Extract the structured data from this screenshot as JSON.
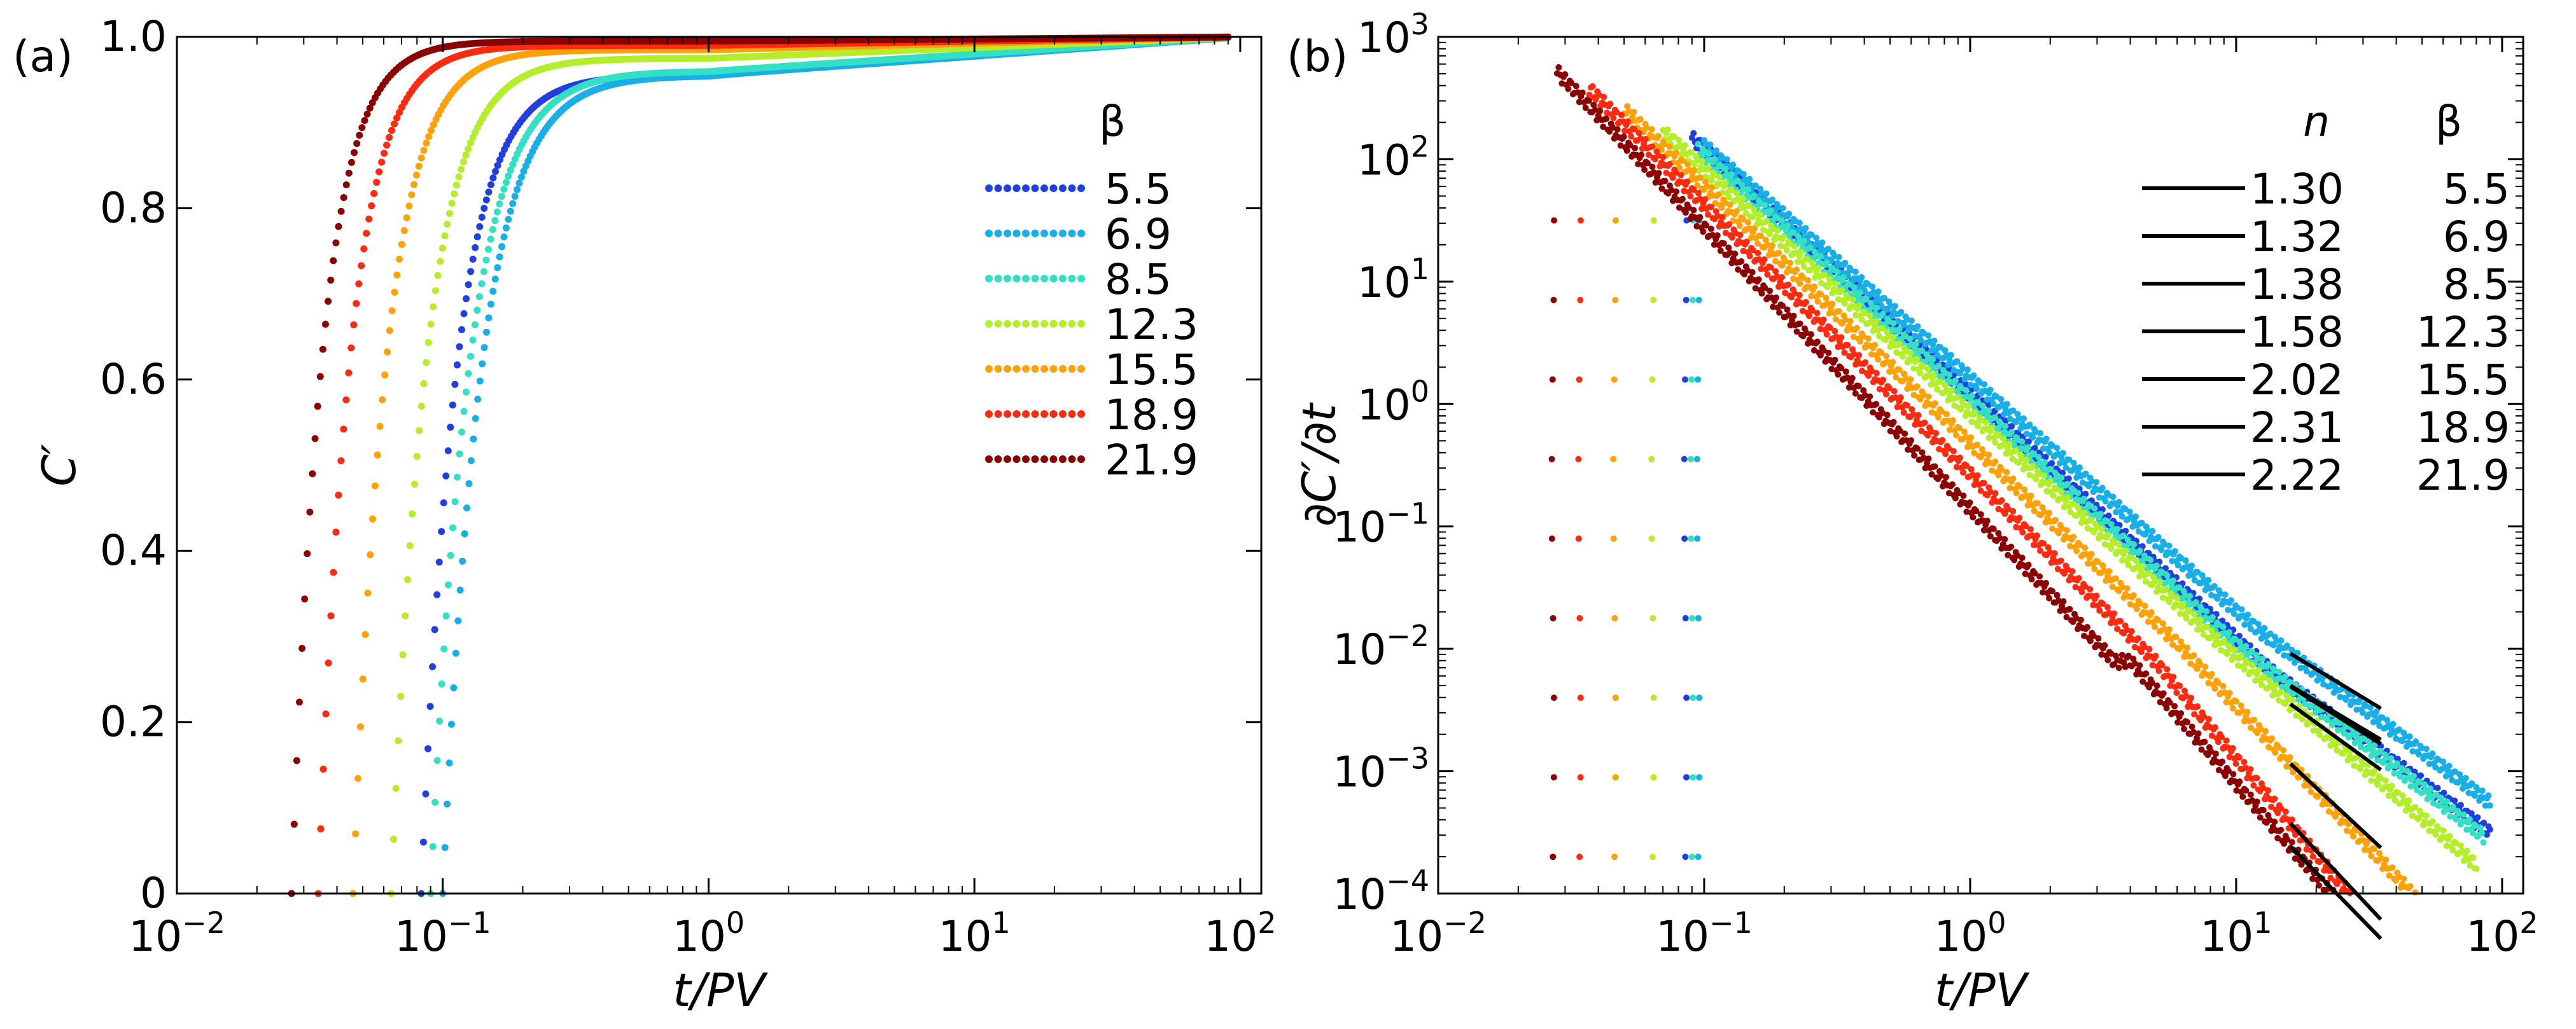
{
  "chart_data": [
    {
      "panel": "(a)",
      "type": "scatter",
      "xscale": "log",
      "xlabel": "t/PV",
      "ylabel": "C′",
      "xlim": [
        0.01,
        120
      ],
      "ylim": [
        0,
        1.0
      ],
      "xticks": [
        {
          "value": 0.01,
          "base": "10",
          "exp": "−2"
        },
        {
          "value": 0.1,
          "base": "10",
          "exp": "−1"
        },
        {
          "value": 1,
          "base": "10",
          "exp": "0"
        },
        {
          "value": 10,
          "base": "10",
          "exp": "1"
        },
        {
          "value": 100,
          "base": "10",
          "exp": "2"
        }
      ],
      "yticks": [
        {
          "value": 0,
          "label": "0"
        },
        {
          "value": 0.2,
          "label": "0.2"
        },
        {
          "value": 0.4,
          "label": "0.4"
        },
        {
          "value": 0.6,
          "label": "0.6"
        },
        {
          "value": 0.8,
          "label": "0.8"
        },
        {
          "value": 1.0,
          "label": "1.0"
        }
      ],
      "legend": {
        "title": "β",
        "position": "right"
      },
      "series": [
        {
          "beta": "5.5",
          "color": "#1f3fe0",
          "t0": 0.083,
          "k": 2.4,
          "plateau": 0.955,
          "tail": 0.045
        },
        {
          "beta": "6.9",
          "color": "#18aee8",
          "t0": 0.1,
          "k": 2.2,
          "plateau": 0.955,
          "tail": 0.045
        },
        {
          "beta": "8.5",
          "color": "#33e0c4",
          "t0": 0.09,
          "k": 2.2,
          "plateau": 0.96,
          "tail": 0.04
        },
        {
          "beta": "12.3",
          "color": "#b4ee2a",
          "t0": 0.064,
          "k": 2.4,
          "plateau": 0.975,
          "tail": 0.025
        },
        {
          "beta": "15.5",
          "color": "#ffa20a",
          "t0": 0.046,
          "k": 2.5,
          "plateau": 0.985,
          "tail": 0.015
        },
        {
          "beta": "18.9",
          "color": "#ff2a10",
          "t0": 0.034,
          "k": 2.6,
          "plateau": 0.99,
          "tail": 0.01
        },
        {
          "beta": "21.9",
          "color": "#8b0000",
          "t0": 0.027,
          "k": 2.7,
          "plateau": 0.995,
          "tail": 0.005
        }
      ]
    },
    {
      "panel": "(b)",
      "type": "scatter",
      "xscale": "log",
      "yscale": "log",
      "xlabel": "t/PV",
      "ylabel": "∂C′/∂t",
      "xlim": [
        0.01,
        120
      ],
      "ylim": [
        0.0001,
        1000
      ],
      "xticks": [
        {
          "value": 0.01,
          "base": "10",
          "exp": "−2"
        },
        {
          "value": 0.1,
          "base": "10",
          "exp": "−1"
        },
        {
          "value": 1,
          "base": "10",
          "exp": "0"
        },
        {
          "value": 10,
          "base": "10",
          "exp": "1"
        },
        {
          "value": 100,
          "base": "10",
          "exp": "2"
        }
      ],
      "yticks": [
        {
          "value": 0.0001,
          "base": "10",
          "exp": "−4"
        },
        {
          "value": 0.001,
          "base": "10",
          "exp": "−3"
        },
        {
          "value": 0.01,
          "base": "10",
          "exp": "−2"
        },
        {
          "value": 0.1,
          "base": "10",
          "exp": "−1"
        },
        {
          "value": 1,
          "base": "10",
          "exp": "0"
        },
        {
          "value": 10,
          "base": "10",
          "exp": "1"
        },
        {
          "value": 100,
          "base": "10",
          "exp": "2"
        },
        {
          "value": 1000,
          "base": "10",
          "exp": "3"
        }
      ],
      "legend": {
        "title_n": "n",
        "title_beta": "β",
        "position": "right"
      },
      "fit_range": [
        16,
        35
      ],
      "series": [
        {
          "beta": "5.5",
          "n": "1.30",
          "color": "#1f3fe0",
          "t0": 0.085,
          "peak": 150,
          "peak_t": 0.09,
          "main_slope": 2.0,
          "plateau": 0.028,
          "tail_start": 14,
          "tail_end": 90
        },
        {
          "beta": "6.9",
          "n": "1.32",
          "color": "#18aee8",
          "t0": 0.095,
          "peak": 130,
          "peak_t": 0.1,
          "main_slope": 1.9,
          "plateau": 0.012,
          "tail_start": 12,
          "tail_end": 90
        },
        {
          "beta": "8.5",
          "n": "1.38",
          "color": "#33e0c4",
          "t0": 0.09,
          "peak": 120,
          "peak_t": 0.095,
          "main_slope": 2.0,
          "plateau": 0.01,
          "tail_start": 10,
          "tail_end": 85
        },
        {
          "beta": "12.3",
          "n": "1.58",
          "color": "#b4ee2a",
          "t0": 0.064,
          "peak": 170,
          "peak_t": 0.07,
          "main_slope": 2.0,
          "plateau": 0.005,
          "tail_start": 8,
          "tail_end": 80
        },
        {
          "beta": "15.5",
          "n": "2.02",
          "color": "#ffa20a",
          "t0": 0.046,
          "peak": 260,
          "peak_t": 0.05,
          "main_slope": 2.1,
          "plateau": 0.005,
          "tail_start": 6,
          "tail_end": 75
        },
        {
          "beta": "18.9",
          "n": "2.31",
          "color": "#ff2a10",
          "t0": 0.034,
          "peak": 380,
          "peak_t": 0.037,
          "main_slope": 2.2,
          "plateau": 0.006,
          "tail_start": 5,
          "tail_end": 50
        },
        {
          "beta": "21.9",
          "n": "2.22",
          "color": "#8b0000",
          "t0": 0.027,
          "peak": 520,
          "peak_t": 0.028,
          "main_slope": 2.3,
          "plateau": 0.008,
          "tail_start": 4,
          "tail_end": 35
        }
      ]
    }
  ]
}
